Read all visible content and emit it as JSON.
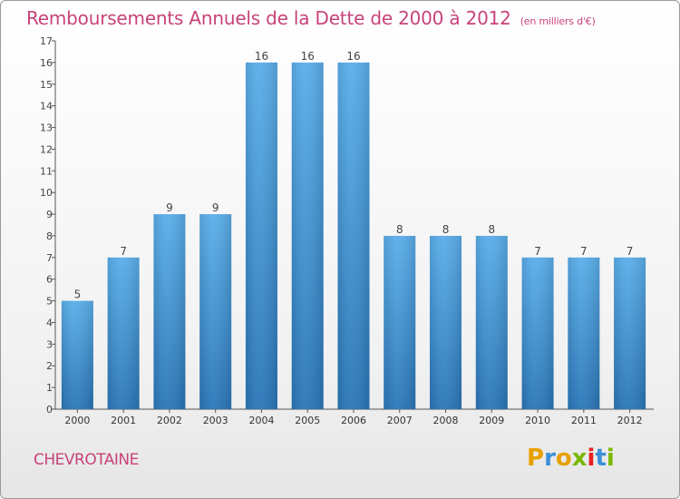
{
  "chart_data": {
    "type": "bar",
    "title": "Remboursements Annuels de la Dette de 2000 à 2012",
    "subtitle": "(en milliers d'€)",
    "categories": [
      "2000",
      "2001",
      "2002",
      "2003",
      "2004",
      "2005",
      "2006",
      "2007",
      "2008",
      "2009",
      "2010",
      "2011",
      "2012"
    ],
    "values": [
      5,
      7,
      9,
      9,
      16,
      16,
      16,
      8,
      8,
      8,
      7,
      7,
      7
    ],
    "ylim": [
      0,
      17
    ],
    "yticks": [
      0,
      1,
      2,
      3,
      4,
      5,
      6,
      7,
      8,
      9,
      10,
      11,
      12,
      13,
      14,
      15,
      16,
      17
    ],
    "grid": false,
    "bar_color_top": "#5aaeea",
    "bar_color_bottom": "#2a76b8"
  },
  "footer": {
    "commune": "CHEVROTAINE",
    "logo": "Proxiti"
  },
  "colors": {
    "title": "#c8437a",
    "logo_letters": [
      "#e8a000",
      "#3b8fd8",
      "#e8a000",
      "#7ab800",
      "#e82020",
      "#3b8fd8",
      "#7ab800"
    ]
  }
}
